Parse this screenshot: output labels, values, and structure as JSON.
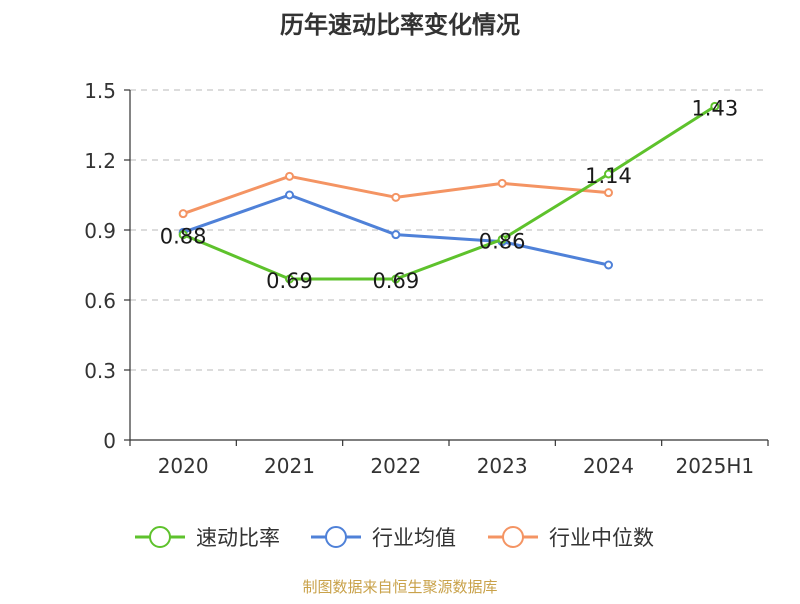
{
  "chart_data": {
    "type": "line",
    "title": "历年速动比率变化情况",
    "categories": [
      "2020",
      "2021",
      "2022",
      "2023",
      "2024",
      "2025H1"
    ],
    "yticks": [
      "0",
      "0.3",
      "0.6",
      "0.9",
      "1.2",
      "1.5"
    ],
    "ylim": [
      0,
      1.5
    ],
    "grid": true,
    "legend_position": "bottom",
    "series": [
      {
        "name": "速动比率",
        "color": "#5ec22c",
        "values": [
          0.88,
          0.69,
          0.69,
          0.86,
          1.14,
          1.43
        ],
        "labels": [
          "0.88",
          "0.69",
          "0.69",
          "0.86",
          "1.14",
          "1.43"
        ]
      },
      {
        "name": "行业均值",
        "color": "#4f81d8",
        "values": [
          0.89,
          1.05,
          0.88,
          0.85,
          0.75,
          null
        ]
      },
      {
        "name": "行业中位数",
        "color": "#f49463",
        "values": [
          0.97,
          1.13,
          1.04,
          1.1,
          1.06,
          null
        ]
      }
    ],
    "source": "制图数据来自恒生聚源数据库",
    "source_color": "#c9a24a"
  }
}
